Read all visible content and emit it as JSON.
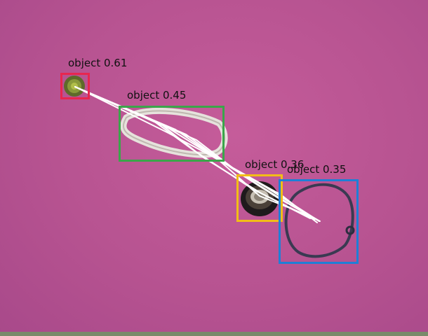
{
  "detections": [
    {
      "label": "object 0.61",
      "color": "#e8264f"
    },
    {
      "label": "object 0.45",
      "color": "#3aa64a"
    },
    {
      "label": "object 0.36",
      "color": "#f2bd17"
    },
    {
      "label": "object 0.35",
      "color": "#1f7fd6"
    }
  ],
  "palette": {
    "background": "#b85592",
    "trajectory": "#ffffff"
  }
}
